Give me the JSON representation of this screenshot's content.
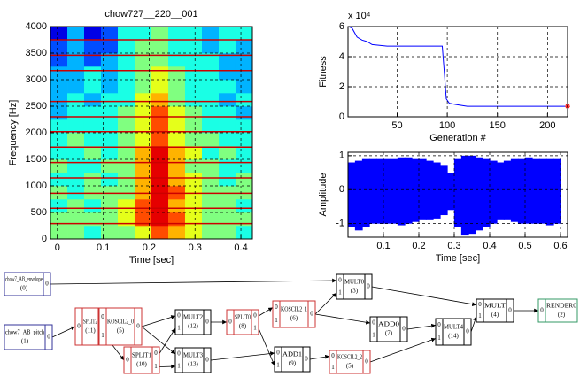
{
  "chart_data": [
    {
      "type": "heatmap",
      "title": "chow727__220__001",
      "xlabel": "Time [sec]",
      "ylabel": "Frequency [Hz]",
      "xlim": [
        -0.015,
        0.425
      ],
      "ylim": [
        0,
        4000
      ],
      "xticks": [
        0,
        0.1,
        0.2,
        0.3,
        0.4
      ],
      "yticks": [
        0,
        500,
        1000,
        1500,
        2000,
        2500,
        3000,
        3500,
        4000
      ],
      "grid": true,
      "colormap": "jet",
      "clim": [
        0,
        10
      ],
      "x_edges": [
        -0.015,
        0.0217,
        0.0583,
        0.095,
        0.1317,
        0.1683,
        0.205,
        0.2417,
        0.2783,
        0.315,
        0.3517,
        0.3883,
        0.425
      ],
      "y_edges": [
        0,
        250,
        500,
        750,
        1000,
        1250,
        1500,
        1750,
        2000,
        2250,
        2500,
        2750,
        3000,
        3250,
        3500,
        3750,
        4000
      ],
      "z": [
        [
          5,
          5,
          4,
          5,
          5,
          6,
          8,
          7,
          6,
          5,
          5,
          4
        ],
        [
          5,
          5,
          5,
          5,
          6,
          8,
          9,
          8,
          6,
          5,
          5,
          5
        ],
        [
          4,
          5,
          4,
          5,
          6,
          8,
          9,
          7,
          6,
          5,
          5,
          4
        ],
        [
          5,
          4,
          5,
          5,
          5,
          7,
          9,
          8,
          6,
          5,
          5,
          5
        ],
        [
          4,
          4,
          5,
          4,
          5,
          7,
          9,
          7,
          6,
          5,
          4,
          5
        ],
        [
          5,
          4,
          4,
          5,
          5,
          7,
          9,
          7,
          5,
          5,
          4,
          4
        ],
        [
          4,
          4,
          5,
          4,
          5,
          7,
          9,
          7,
          6,
          4,
          5,
          4
        ],
        [
          4,
          5,
          4,
          4,
          5,
          6,
          8,
          6,
          5,
          5,
          4,
          4
        ],
        [
          4,
          4,
          4,
          4,
          5,
          6,
          8,
          6,
          5,
          4,
          4,
          4
        ],
        [
          3,
          4,
          4,
          4,
          5,
          6,
          8,
          6,
          5,
          4,
          4,
          3
        ],
        [
          3,
          4,
          3,
          4,
          4,
          6,
          7,
          5,
          4,
          4,
          3,
          4
        ],
        [
          3,
          3,
          4,
          3,
          4,
          5,
          6,
          5,
          4,
          4,
          4,
          3
        ],
        [
          3,
          3,
          4,
          3,
          4,
          5,
          6,
          5,
          4,
          4,
          3,
          3
        ],
        [
          2,
          3,
          2,
          3,
          4,
          5,
          5,
          4,
          4,
          4,
          3,
          3
        ],
        [
          2,
          3,
          2,
          2,
          4,
          5,
          5,
          4,
          4,
          3,
          4,
          3
        ],
        [
          1,
          3,
          1,
          2,
          4,
          4,
          5,
          4,
          4,
          3,
          4,
          4
        ]
      ],
      "harmonics": [
        290,
        580,
        860,
        1150,
        1440,
        1730,
        2020,
        2300,
        2590,
        3170,
        3460,
        3750
      ],
      "harmonic_color": "#cc0000"
    },
    {
      "type": "line",
      "xlabel": "Generation #",
      "ylabel": "Fitness",
      "y_scale_label": "x 10⁴",
      "xlim": [
        1,
        220
      ],
      "ylim": [
        0,
        6
      ],
      "xticks": [
        50,
        100,
        150,
        200
      ],
      "yticks": [
        0,
        2,
        4,
        6
      ],
      "grid": true,
      "series": [
        {
          "color": "#0000ff",
          "x": [
            1,
            5,
            10,
            15,
            20,
            25,
            40,
            95,
            97,
            99,
            102,
            110,
            120,
            220
          ],
          "values": [
            6,
            5.9,
            5.3,
            5.1,
            5.0,
            4.8,
            4.7,
            4.7,
            3.0,
            1.2,
            0.9,
            0.8,
            0.7,
            0.7
          ]
        }
      ],
      "marker": {
        "x": 220,
        "y": 0.7,
        "color": "#ff0000"
      }
    },
    {
      "type": "envelope",
      "xlabel": "Time [sec]",
      "ylabel": "Amplitude",
      "xlim": [
        0,
        0.62
      ],
      "ylim": [
        -1.4,
        1.1
      ],
      "xticks": [
        0.1,
        0.2,
        0.3,
        0.4,
        0.5,
        0.6
      ],
      "yticks": [
        -1,
        0,
        1
      ],
      "grid": true,
      "color": "#0000ff",
      "x": [
        0.01,
        0.03,
        0.05,
        0.07,
        0.09,
        0.11,
        0.13,
        0.15,
        0.17,
        0.19,
        0.21,
        0.23,
        0.25,
        0.27,
        0.29,
        0.31,
        0.33,
        0.35,
        0.37,
        0.39,
        0.41,
        0.43,
        0.45,
        0.47,
        0.49,
        0.51,
        0.53,
        0.55,
        0.57,
        0.59
      ],
      "upper": [
        0.8,
        0.85,
        0.9,
        0.9,
        0.9,
        0.9,
        0.9,
        0.95,
        0.95,
        0.9,
        0.9,
        0.85,
        0.8,
        0.7,
        0.5,
        0.9,
        1.0,
        1.0,
        0.95,
        0.9,
        0.85,
        0.8,
        0.85,
        0.9,
        0.9,
        0.95,
        0.9,
        0.9,
        0.9,
        0.9
      ],
      "lower": [
        -1.1,
        -1.2,
        -1.1,
        -1.0,
        -1.0,
        -1.0,
        -1.0,
        -1.05,
        -1.0,
        -0.95,
        -0.9,
        -0.9,
        -0.85,
        -0.75,
        -0.6,
        -1.1,
        -1.35,
        -1.3,
        -1.2,
        -1.1,
        -1.0,
        -0.9,
        -0.9,
        -0.95,
        -1.0,
        -1.0,
        -1.0,
        -1.0,
        -1.05,
        -1.0
      ]
    }
  ],
  "diagram": {
    "nodes": [
      {
        "label": "chow7_AB_envelope",
        "id": "(0)",
        "in": [],
        "out": [
          0
        ],
        "color": "#333399"
      },
      {
        "label": "chow7_AB_pitch",
        "id": "(1)",
        "in": [],
        "out": [
          0
        ],
        "color": "#333399"
      },
      {
        "label": "SPLIT2",
        "id": "(11)",
        "in": [
          0
        ],
        "out": [
          0,
          1
        ],
        "color": "#cc3333"
      },
      {
        "label": "KOSCIL2_0",
        "id": "(5)",
        "in": [
          0,
          1
        ],
        "out": [
          0
        ],
        "color": "#cc3333"
      },
      {
        "label": "SPLIT1",
        "id": "(10)",
        "in": [
          0
        ],
        "out": [
          0,
          1
        ],
        "color": "#cc3333"
      },
      {
        "label": "MULT2",
        "id": "(12)",
        "in": [
          0,
          1
        ],
        "out": [
          0
        ],
        "color": "#000000"
      },
      {
        "label": "MULT3",
        "id": "(13)",
        "in": [
          0,
          1
        ],
        "out": [
          0
        ],
        "color": "#000000"
      },
      {
        "label": "SPLIT0",
        "id": "(8)",
        "in": [
          0
        ],
        "out": [
          0,
          1
        ],
        "color": "#cc3333"
      },
      {
        "label": "KOSCIL2_1",
        "id": "(6)",
        "in": [
          0,
          1
        ],
        "out": [
          0
        ],
        "color": "#cc3333"
      },
      {
        "label": "ADD1",
        "id": "(9)",
        "in": [
          0,
          1
        ],
        "out": [
          0
        ],
        "color": "#000000"
      },
      {
        "label": "KOSCIL2_2",
        "id": "(5)",
        "in": [
          0,
          1
        ],
        "out": [
          0
        ],
        "color": "#cc3333"
      },
      {
        "label": "MULT0",
        "id": "(3)",
        "in": [
          0,
          1
        ],
        "out": [
          0
        ],
        "color": "#000000"
      },
      {
        "label": "ADD0",
        "id": "(7)",
        "in": [
          0,
          1
        ],
        "out": [
          0
        ],
        "color": "#000000"
      },
      {
        "label": "MULT4",
        "id": "(14)",
        "in": [
          0,
          1
        ],
        "out": [
          0
        ],
        "color": "#000000"
      },
      {
        "label": "MULT",
        "id": "(4)",
        "in": [
          0,
          1
        ],
        "out": [
          0
        ],
        "color": "#000000"
      },
      {
        "label": "RENDER0",
        "id": "(2)",
        "in": [
          0
        ],
        "out": [],
        "color": "#339966"
      }
    ],
    "edges": [
      [
        0,
        0,
        11,
        0
      ],
      [
        1,
        0,
        2,
        0
      ],
      [
        2,
        0,
        3,
        0
      ],
      [
        2,
        1,
        4,
        0
      ],
      [
        3,
        0,
        5,
        0
      ],
      [
        4,
        0,
        5,
        1
      ],
      [
        3,
        0,
        6,
        0
      ],
      [
        4,
        1,
        6,
        1
      ],
      [
        5,
        0,
        7,
        0
      ],
      [
        7,
        0,
        8,
        0
      ],
      [
        7,
        1,
        9,
        1
      ],
      [
        6,
        0,
        9,
        0
      ],
      [
        8,
        0,
        11,
        1
      ],
      [
        8,
        0,
        12,
        0
      ],
      [
        9,
        0,
        10,
        0
      ],
      [
        12,
        0,
        13,
        0
      ],
      [
        10,
        0,
        13,
        1
      ],
      [
        11,
        0,
        14,
        0
      ],
      [
        13,
        0,
        14,
        1
      ],
      [
        14,
        0,
        15,
        0
      ]
    ]
  }
}
